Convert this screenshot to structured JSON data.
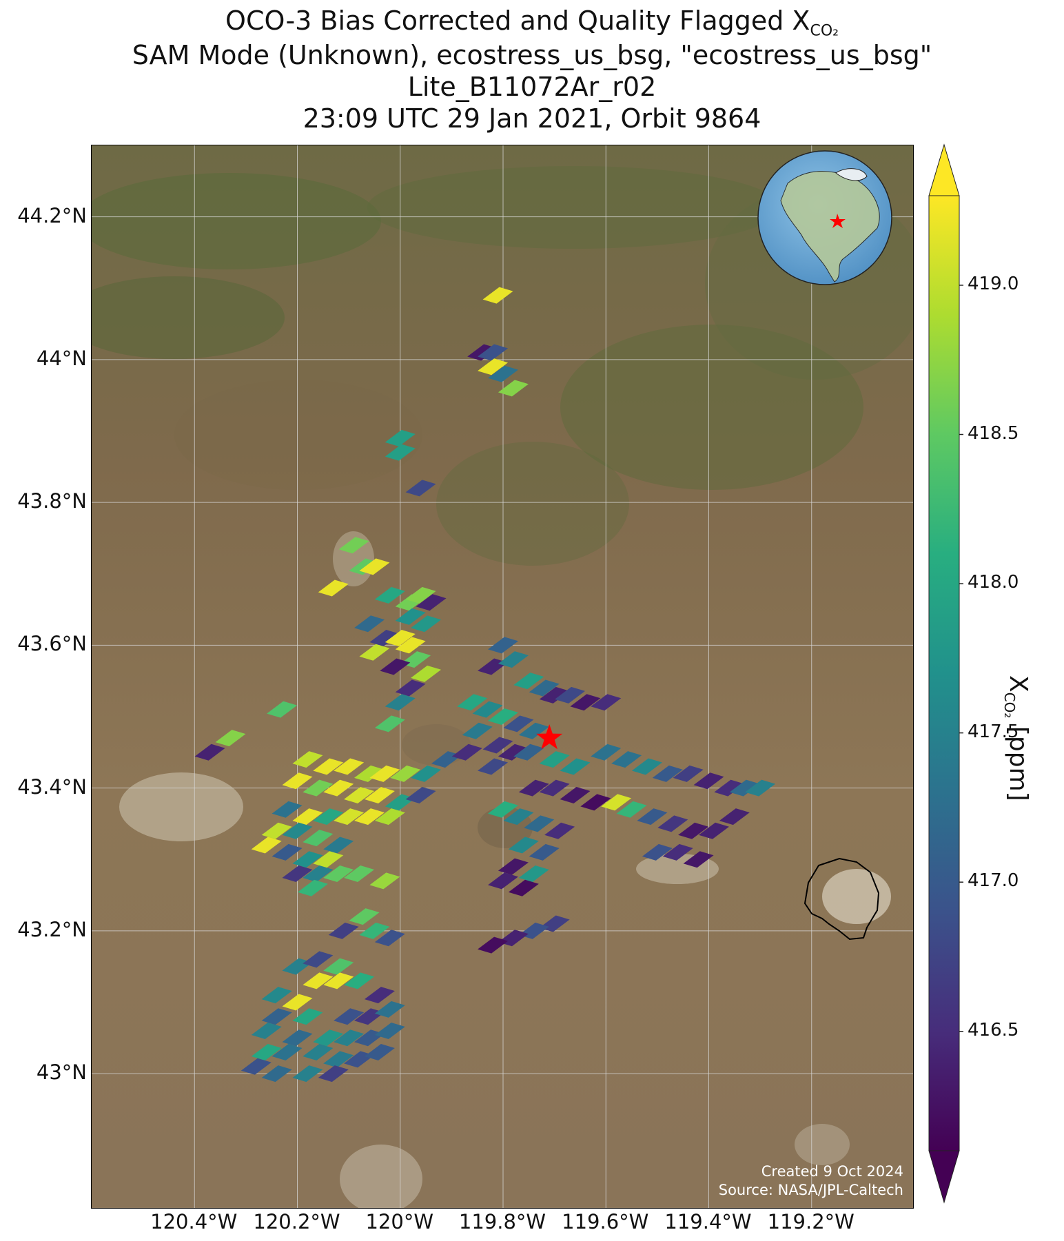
{
  "title": {
    "line1_prefix": "OCO-3 Bias Corrected and Quality Flagged X",
    "line1_sub": "CO₂",
    "line2": "SAM Mode (Unknown), ecostress_us_bsg, \"ecostress_us_bsg\"",
    "line3": "Lite_B11072Ar_r02",
    "line4": "23:09 UTC 29 Jan 2021, Orbit 9864"
  },
  "map": {
    "lat_labels": [
      "44.2°N",
      "44°N",
      "43.8°N",
      "43.6°N",
      "43.4°N",
      "43.2°N",
      "43°N"
    ],
    "lat_values": [
      44.2,
      44.0,
      43.8,
      43.6,
      43.4,
      43.2,
      43.0
    ],
    "lon_labels": [
      "120.4°W",
      "120.2°W",
      "120°W",
      "119.8°W",
      "119.6°W",
      "119.4°W",
      "119.2°W"
    ],
    "lon_values": [
      -120.4,
      -120.2,
      -120.0,
      -119.8,
      -119.6,
      -119.4,
      -119.2
    ],
    "lat_range": [
      42.81,
      44.3
    ],
    "lon_range": [
      -120.6,
      -119.0
    ],
    "target_marker": {
      "lon": -119.71,
      "lat": 43.47,
      "color": "#ff0000",
      "icon": "star-icon"
    },
    "background": "satellite-imagery",
    "credits_line1": "Created 9 Oct 2024",
    "credits_line2": "Source: NASA/JPL-Caltech"
  },
  "inset_globe": {
    "icon": "globe-icon",
    "marker_color": "#ff0000",
    "ocean_color": "#6aa9d8"
  },
  "colorbar": {
    "label_prefix": "X",
    "label_sub": "CO₂",
    "label_suffix": " [ppm]",
    "min": 416.1,
    "max": 419.3,
    "ticks": [
      "416.5",
      "417.0",
      "417.5",
      "418.0",
      "418.5",
      "419.0"
    ],
    "tick_values": [
      416.5,
      417.0,
      417.5,
      418.0,
      418.5,
      419.0
    ],
    "colormap": "viridis",
    "extend": "both"
  },
  "chart_data": {
    "type": "scatter",
    "description_units": "lon, lat, xco2 ppm",
    "points": [
      [
        -119.81,
        44.09,
        419.2
      ],
      [
        -119.84,
        44.01,
        416.3
      ],
      [
        -119.82,
        44.01,
        416.9
      ],
      [
        -119.82,
        43.99,
        419.2
      ],
      [
        -119.8,
        43.98,
        417.3
      ],
      [
        -119.78,
        43.96,
        418.7
      ],
      [
        -120.0,
        43.89,
        417.9
      ],
      [
        -120.0,
        43.87,
        417.9
      ],
      [
        -119.96,
        43.82,
        416.8
      ],
      [
        -120.09,
        43.74,
        418.6
      ],
      [
        -120.07,
        43.71,
        418.5
      ],
      [
        -120.05,
        43.71,
        419.2
      ],
      [
        -120.13,
        43.68,
        419.2
      ],
      [
        -120.02,
        43.67,
        418.0
      ],
      [
        -119.98,
        43.66,
        418.6
      ],
      [
        -119.96,
        43.67,
        418.7
      ],
      [
        -119.94,
        43.66,
        416.4
      ],
      [
        -119.98,
        43.64,
        417.7
      ],
      [
        -119.95,
        43.63,
        417.8
      ],
      [
        -120.06,
        43.63,
        417.2
      ],
      [
        -120.03,
        43.61,
        416.7
      ],
      [
        -120.0,
        43.61,
        419.2
      ],
      [
        -119.98,
        43.6,
        419.2
      ],
      [
        -120.05,
        43.59,
        419.0
      ],
      [
        -119.97,
        43.58,
        418.5
      ],
      [
        -120.01,
        43.57,
        416.3
      ],
      [
        -119.95,
        43.56,
        418.9
      ],
      [
        -119.98,
        43.54,
        416.5
      ],
      [
        -120.0,
        43.52,
        417.5
      ],
      [
        -120.02,
        43.49,
        418.4
      ],
      [
        -119.8,
        43.6,
        417.1
      ],
      [
        -119.82,
        43.57,
        416.4
      ],
      [
        -119.78,
        43.58,
        417.5
      ],
      [
        -119.75,
        43.55,
        417.9
      ],
      [
        -119.72,
        43.54,
        417.2
      ],
      [
        -119.7,
        43.53,
        416.4
      ],
      [
        -119.67,
        43.53,
        416.8
      ],
      [
        -119.64,
        43.52,
        416.3
      ],
      [
        -119.6,
        43.52,
        416.5
      ],
      [
        -119.86,
        43.52,
        418.0
      ],
      [
        -119.83,
        43.51,
        417.6
      ],
      [
        -119.8,
        43.5,
        418.1
      ],
      [
        -119.77,
        43.49,
        416.9
      ],
      [
        -119.74,
        43.48,
        417.3
      ],
      [
        -119.85,
        43.48,
        417.4
      ],
      [
        -119.81,
        43.46,
        416.6
      ],
      [
        -119.78,
        43.45,
        416.4
      ],
      [
        -119.75,
        43.45,
        417.1
      ],
      [
        -119.7,
        43.44,
        417.9
      ],
      [
        -119.66,
        43.43,
        417.7
      ],
      [
        -119.82,
        43.43,
        416.8
      ],
      [
        -119.6,
        43.45,
        417.3
      ],
      [
        -119.56,
        43.44,
        417.3
      ],
      [
        -119.52,
        43.43,
        417.6
      ],
      [
        -119.48,
        43.42,
        417.0
      ],
      [
        -119.44,
        43.42,
        416.7
      ],
      [
        -119.4,
        43.41,
        416.4
      ],
      [
        -119.36,
        43.4,
        416.5
      ],
      [
        -119.33,
        43.4,
        417.2
      ],
      [
        -119.3,
        43.4,
        417.5
      ],
      [
        -119.74,
        43.4,
        416.4
      ],
      [
        -119.7,
        43.4,
        416.5
      ],
      [
        -119.66,
        43.39,
        416.3
      ],
      [
        -119.62,
        43.38,
        416.2
      ],
      [
        -119.58,
        43.38,
        419.1
      ],
      [
        -119.55,
        43.37,
        418.2
      ],
      [
        -119.51,
        43.36,
        417.0
      ],
      [
        -119.47,
        43.35,
        416.6
      ],
      [
        -119.43,
        43.34,
        416.3
      ],
      [
        -119.39,
        43.34,
        416.4
      ],
      [
        -119.35,
        43.36,
        416.4
      ],
      [
        -119.8,
        43.37,
        418.1
      ],
      [
        -119.77,
        43.36,
        417.5
      ],
      [
        -119.73,
        43.35,
        417.2
      ],
      [
        -119.69,
        43.34,
        416.5
      ],
      [
        -119.76,
        43.32,
        417.6
      ],
      [
        -119.72,
        43.31,
        417.0
      ],
      [
        -119.5,
        43.31,
        416.9
      ],
      [
        -119.46,
        43.31,
        416.5
      ],
      [
        -119.42,
        43.3,
        416.3
      ],
      [
        -119.78,
        43.29,
        416.3
      ],
      [
        -119.74,
        43.28,
        417.8
      ],
      [
        -119.8,
        43.27,
        416.4
      ],
      [
        -119.76,
        43.26,
        416.2
      ],
      [
        -119.7,
        43.21,
        416.7
      ],
      [
        -119.74,
        43.2,
        416.9
      ],
      [
        -119.78,
        43.19,
        416.4
      ],
      [
        -119.82,
        43.18,
        416.2
      ],
      [
        -120.37,
        43.45,
        416.4
      ],
      [
        -120.33,
        43.47,
        418.7
      ],
      [
        -120.23,
        43.51,
        418.4
      ],
      [
        -120.18,
        43.44,
        419.0
      ],
      [
        -120.14,
        43.43,
        419.2
      ],
      [
        -120.1,
        43.43,
        419.2
      ],
      [
        -120.06,
        43.42,
        418.9
      ],
      [
        -120.03,
        43.42,
        419.2
      ],
      [
        -119.99,
        43.42,
        418.8
      ],
      [
        -119.95,
        43.42,
        417.7
      ],
      [
        -119.91,
        43.44,
        417.1
      ],
      [
        -119.87,
        43.45,
        416.5
      ],
      [
        -120.2,
        43.41,
        419.2
      ],
      [
        -120.16,
        43.4,
        418.6
      ],
      [
        -120.12,
        43.4,
        419.2
      ],
      [
        -120.08,
        43.39,
        419.1
      ],
      [
        -120.04,
        43.39,
        419.2
      ],
      [
        -120.0,
        43.38,
        417.9
      ],
      [
        -119.96,
        43.39,
        416.8
      ],
      [
        -120.22,
        43.37,
        417.3
      ],
      [
        -120.18,
        43.36,
        419.2
      ],
      [
        -120.14,
        43.36,
        418.0
      ],
      [
        -120.1,
        43.36,
        419.1
      ],
      [
        -120.06,
        43.36,
        419.2
      ],
      [
        -120.02,
        43.36,
        418.9
      ],
      [
        -120.24,
        43.34,
        419.0
      ],
      [
        -120.2,
        43.34,
        417.6
      ],
      [
        -120.16,
        43.33,
        418.4
      ],
      [
        -120.12,
        43.32,
        417.4
      ],
      [
        -120.26,
        43.32,
        419.2
      ],
      [
        -120.22,
        43.31,
        417.0
      ],
      [
        -120.18,
        43.3,
        417.7
      ],
      [
        -120.14,
        43.3,
        419.0
      ],
      [
        -120.2,
        43.28,
        416.6
      ],
      [
        -120.16,
        43.28,
        417.5
      ],
      [
        -120.12,
        43.28,
        418.5
      ],
      [
        -120.08,
        43.28,
        418.5
      ],
      [
        -120.17,
        43.26,
        418.2
      ],
      [
        -120.03,
        43.27,
        418.8
      ],
      [
        -120.07,
        43.22,
        418.5
      ],
      [
        -120.05,
        43.2,
        418.2
      ],
      [
        -120.02,
        43.19,
        416.9
      ],
      [
        -120.11,
        43.2,
        416.7
      ],
      [
        -120.2,
        43.15,
        417.5
      ],
      [
        -120.16,
        43.16,
        416.8
      ],
      [
        -120.12,
        43.15,
        418.4
      ],
      [
        -120.16,
        43.13,
        419.2
      ],
      [
        -120.12,
        43.13,
        419.2
      ],
      [
        -120.08,
        43.13,
        418.1
      ],
      [
        -120.24,
        43.11,
        417.6
      ],
      [
        -120.2,
        43.1,
        419.2
      ],
      [
        -120.04,
        43.11,
        416.5
      ],
      [
        -120.24,
        43.08,
        417.1
      ],
      [
        -120.18,
        43.08,
        418.0
      ],
      [
        -120.1,
        43.08,
        416.9
      ],
      [
        -120.06,
        43.08,
        416.6
      ],
      [
        -120.02,
        43.09,
        417.3
      ],
      [
        -120.26,
        43.06,
        417.5
      ],
      [
        -120.2,
        43.05,
        417.2
      ],
      [
        -120.14,
        43.05,
        417.8
      ],
      [
        -120.1,
        43.05,
        417.5
      ],
      [
        -120.06,
        43.05,
        417.0
      ],
      [
        -120.02,
        43.06,
        417.2
      ],
      [
        -120.26,
        43.03,
        418.0
      ],
      [
        -120.22,
        43.03,
        417.3
      ],
      [
        -120.16,
        43.03,
        417.5
      ],
      [
        -120.12,
        43.02,
        417.4
      ],
      [
        -120.08,
        43.02,
        416.9
      ],
      [
        -120.04,
        43.03,
        417.0
      ],
      [
        -120.28,
        43.01,
        416.9
      ],
      [
        -120.24,
        43.0,
        417.2
      ],
      [
        -120.18,
        43.0,
        417.5
      ],
      [
        -120.13,
        43.0,
        416.7
      ]
    ]
  }
}
